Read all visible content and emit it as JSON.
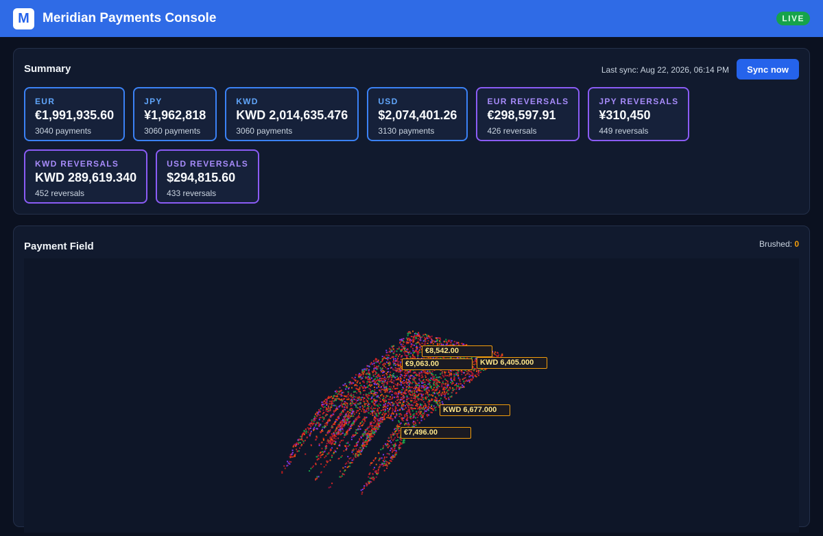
{
  "header": {
    "logo": "M",
    "title": "Meridian Payments Console",
    "badge": "LIVE"
  },
  "summary": {
    "title": "Summary",
    "last_sync": "Last sync: Aug 22, 2026, 06:14 PM",
    "button": "Sync now",
    "cards": [
      {
        "label": "EUR",
        "amount": "€1,991,935.60",
        "count": "3040 payments",
        "kind": "payments"
      },
      {
        "label": "JPY",
        "amount": "¥1,962,818",
        "count": "3060 payments",
        "kind": "payments"
      },
      {
        "label": "KWD",
        "amount": "KWD 2,014,635.476",
        "count": "3060 payments",
        "kind": "payments"
      },
      {
        "label": "USD",
        "amount": "$2,074,401.26",
        "count": "3130 payments",
        "kind": "payments"
      },
      {
        "label": "EUR REVERSALS",
        "amount": "€298,597.91",
        "count": "426 reversals",
        "kind": "reversals"
      },
      {
        "label": "JPY REVERSALS",
        "amount": "¥310,450",
        "count": "449 reversals",
        "kind": "reversals"
      },
      {
        "label": "KWD REVERSALS",
        "amount": "KWD 289,619.340",
        "count": "452 reversals",
        "kind": "reversals"
      },
      {
        "label": "USD REVERSALS",
        "amount": "$294,815.60",
        "count": "433 reversals",
        "kind": "reversals"
      }
    ]
  },
  "field": {
    "title": "Payment Field",
    "brushed_label": "Brushed:",
    "brushed_value": "0",
    "labels": [
      "€8,542.00",
      "€9,063.00",
      "KWD 6,405.000",
      "KWD 6,677.000",
      "€7,496.00"
    ]
  }
}
